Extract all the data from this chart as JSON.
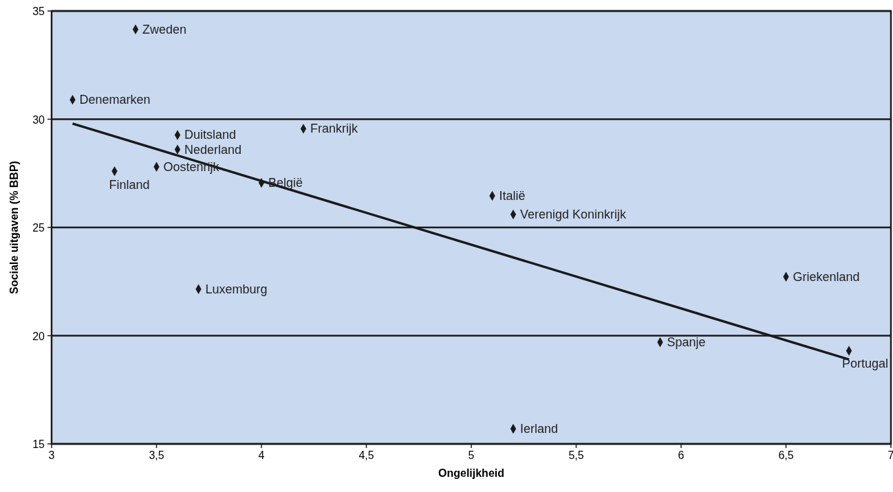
{
  "chart_data": {
    "type": "scatter",
    "xlabel": "Ongelijkheid",
    "ylabel": "Sociale uitgaven (% BBP)",
    "xlim": [
      3,
      7
    ],
    "ylim": [
      15,
      35
    ],
    "xticks": [
      3,
      {
        "value": 3.5,
        "label": "3,5"
      },
      4,
      {
        "value": 4.5,
        "label": "4,5"
      },
      5,
      {
        "value": 5.5,
        "label": "5,5"
      },
      6,
      {
        "value": 6.5,
        "label": "6,5"
      },
      7
    ],
    "yticks": [
      15,
      20,
      25,
      30,
      35
    ],
    "grid": "y",
    "marker": "diamond",
    "series": [
      {
        "color": "#1a1a1a",
        "x": [
          3.4,
          3.1,
          3.6,
          3.6,
          4.2,
          3.5,
          3.3,
          4.0,
          3.7,
          5.1,
          5.2,
          5.2,
          6.5,
          5.9,
          6.8
        ],
        "values": [
          34.15,
          30.9,
          29.27,
          28.6,
          29.56,
          27.8,
          27.6,
          27.06,
          22.15,
          26.46,
          25.6,
          15.7,
          22.72,
          19.7,
          19.3
        ]
      },
      {
        "type": "line",
        "color": "#1a1a1a",
        "marker": "none",
        "x": [
          3.1,
          6.8
        ],
        "values": [
          29.8,
          18.9
        ]
      }
    ],
    "annotations": [
      {
        "text": "Zweden",
        "x": 3.4,
        "y": 34.15
      },
      {
        "text": "Denemarken",
        "x": 3.1,
        "y": 30.9
      },
      {
        "text": "Duitsland",
        "x": 3.6,
        "y": 29.27
      },
      {
        "text": "Nederland",
        "x": 3.6,
        "y": 28.6
      },
      {
        "text": "Frankrijk",
        "x": 4.2,
        "y": 29.56
      },
      {
        "text": "Oostenrijk",
        "x": 3.5,
        "y": 27.8
      },
      {
        "text": "Finland",
        "x": 3.3,
        "y": 27.6
      },
      {
        "text": "België",
        "x": 4.0,
        "y": 27.06
      },
      {
        "text": "Luxemburg",
        "x": 3.7,
        "y": 22.15
      },
      {
        "text": "Italië",
        "x": 5.1,
        "y": 26.46
      },
      {
        "text": "Verenigd Koninkrijk",
        "x": 5.2,
        "y": 25.6
      },
      {
        "text": "Ierland",
        "x": 5.2,
        "y": 15.7
      },
      {
        "text": "Griekenland",
        "x": 6.5,
        "y": 22.72
      },
      {
        "text": "Spanje",
        "x": 5.9,
        "y": 19.7
      },
      {
        "text": "Portugal",
        "x": 6.8,
        "y": 19.3
      }
    ]
  }
}
